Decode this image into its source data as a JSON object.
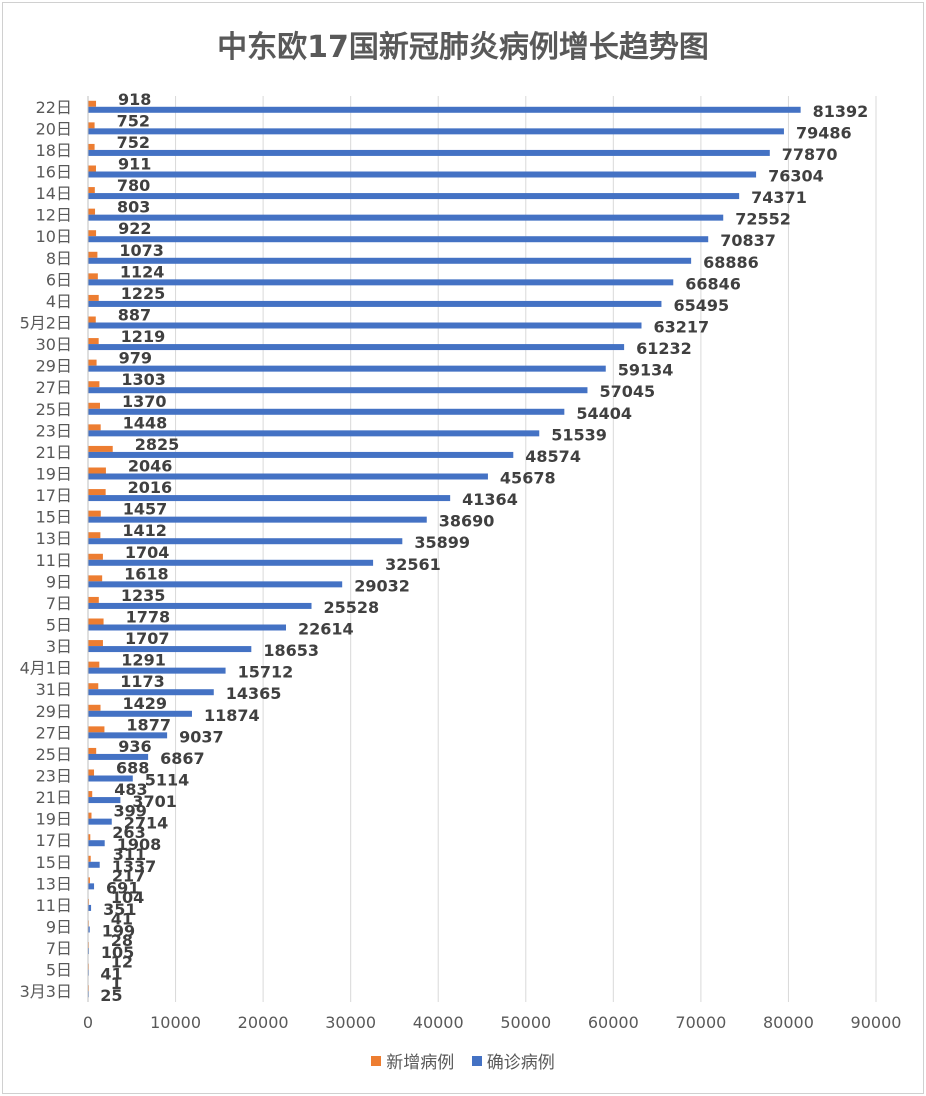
{
  "chart_data": {
    "type": "bar",
    "orientation": "horizontal",
    "title": "中东欧17国新冠肺炎病例增长趋势图",
    "xlim": [
      0,
      90000
    ],
    "xticks": [
      0,
      10000,
      20000,
      30000,
      40000,
      50000,
      60000,
      70000,
      80000,
      90000
    ],
    "grid": true,
    "legend_position": "bottom",
    "categories": [
      "3月3日",
      "5日",
      "7日",
      "9日",
      "11日",
      "13日",
      "15日",
      "17日",
      "19日",
      "21日",
      "23日",
      "25日",
      "27日",
      "29日",
      "31日",
      "4月1日",
      "3日",
      "5日",
      "7日",
      "9日",
      "11日",
      "13日",
      "15日",
      "17日",
      "19日",
      "21日",
      "23日",
      "25日",
      "27日",
      "29日",
      "30日",
      "5月2日",
      "4日",
      "6日",
      "8日",
      "10日",
      "12日",
      "14日",
      "16日",
      "18日",
      "20日",
      "22日"
    ],
    "series": [
      {
        "name": "新增病例",
        "color": "#ED7D31",
        "values": [
          1,
          12,
          28,
          41,
          104,
          217,
          311,
          263,
          399,
          483,
          688,
          936,
          1877,
          1429,
          1173,
          1291,
          1707,
          1778,
          1235,
          1618,
          1704,
          1412,
          1457,
          2016,
          2046,
          2825,
          1448,
          1370,
          1303,
          979,
          1219,
          887,
          1225,
          1124,
          1073,
          922,
          803,
          780,
          911,
          752,
          752,
          918
        ]
      },
      {
        "name": "确诊病例",
        "color": "#4472C4",
        "values": [
          25,
          41,
          105,
          199,
          351,
          691,
          1337,
          1908,
          2714,
          3701,
          5114,
          6867,
          9037,
          11874,
          14365,
          15712,
          18653,
          22614,
          25528,
          29032,
          32561,
          35899,
          38690,
          41364,
          45678,
          48574,
          51539,
          54404,
          57045,
          59134,
          61232,
          63217,
          65495,
          66846,
          68886,
          70837,
          72552,
          74371,
          76304,
          77870,
          79486,
          81392
        ]
      }
    ]
  }
}
